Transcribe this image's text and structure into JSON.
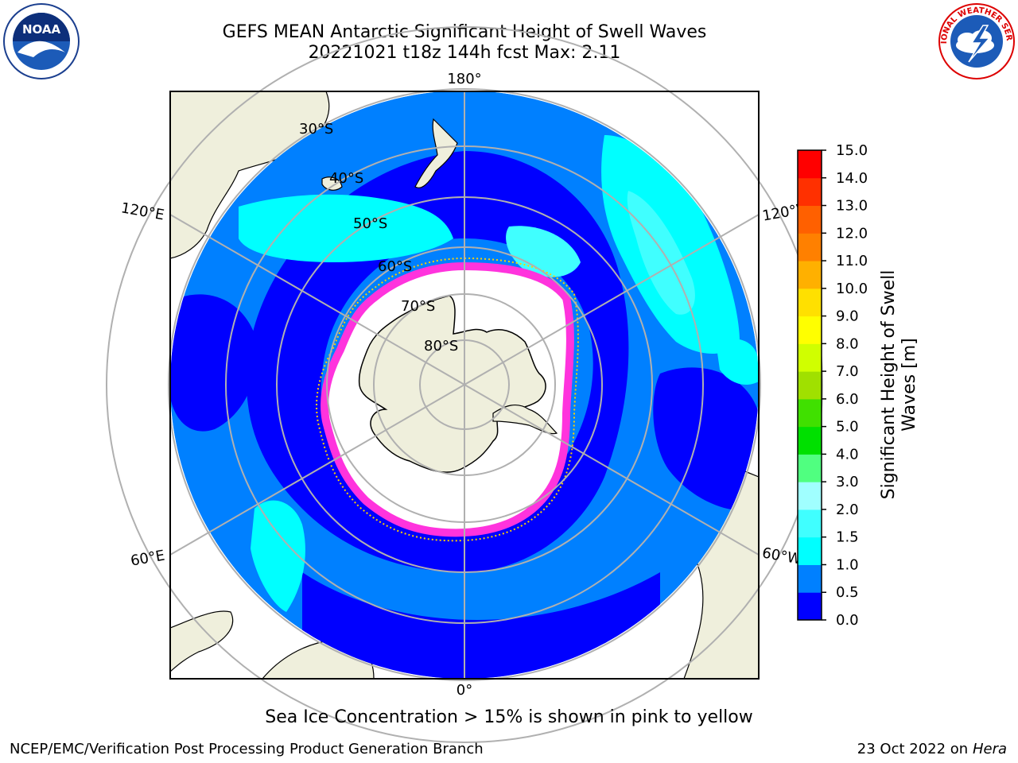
{
  "title_line1": "GEFS MEAN Antarctic Significant Height of Swell Waves",
  "title_line2": "20221021 t18z 144h fcst   Max: 2.11",
  "colorbar": {
    "label_line1": "Significant Height of Swell",
    "label_line2": "Waves [m]",
    "ticks": [
      "0.0",
      "0.5",
      "1.0",
      "1.5",
      "2.0",
      "3.0",
      "4.0",
      "5.0",
      "6.0",
      "7.0",
      "8.0",
      "9.0",
      "10.0",
      "11.0",
      "12.0",
      "13.0",
      "14.0",
      "15.0"
    ],
    "colors": [
      "#0000ff",
      "#0080ff",
      "#00ffff",
      "#40ffff",
      "#a0ffff",
      "#50ff80",
      "#00e000",
      "#40e000",
      "#a0e000",
      "#d0ff00",
      "#ffff00",
      "#ffe000",
      "#ffb000",
      "#ff8000",
      "#ff6000",
      "#ff3000",
      "#ff0000"
    ]
  },
  "map": {
    "lon_labels": {
      "top": "180°",
      "bottom": "0°",
      "left_upper": "120°E",
      "left_lower": "60°E",
      "right_upper": "120°W",
      "right_lower": "60°W"
    },
    "lat_labels": [
      "30°S",
      "40°S",
      "50°S",
      "60°S",
      "70°S",
      "80°S"
    ]
  },
  "colors": {
    "ocean_dark": "#0000ff",
    "ocean_mid": "#0080ff",
    "ocean_light": "#00ffff",
    "land": "#efefdc",
    "ice": "#ff44dd"
  },
  "logos": {
    "noara": "NOAA",
    "nws": "NATIONAL WEATHER SERVICE"
  },
  "caption": "Sea Ice Concentration > 15% is shown in pink to yellow",
  "footer_left": "NCEP/EMC/Verification Post Processing Product Generation Branch",
  "footer_right_prefix": "23 Oct 2022 on ",
  "footer_right_machine": "Hera"
}
